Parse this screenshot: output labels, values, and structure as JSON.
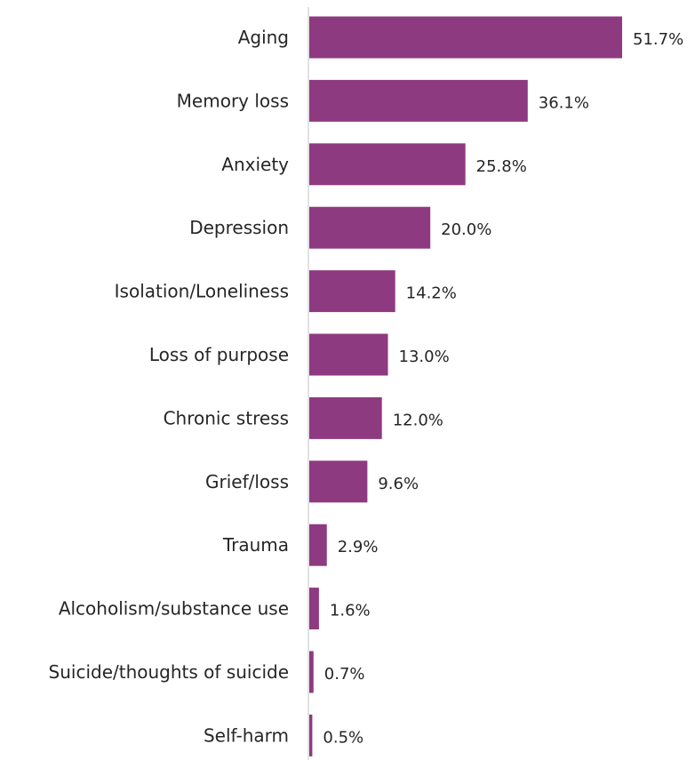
{
  "chart_data": {
    "type": "bar",
    "orientation": "horizontal",
    "title": "",
    "xlabel": "",
    "ylabel": "",
    "categories": [
      "Aging",
      "Memory loss",
      "Anxiety",
      "Depression",
      "Isolation/Loneliness",
      "Loss of purpose",
      "Chronic stress",
      "Grief/loss",
      "Trauma",
      "Alcoholism/substance use",
      "Suicide/thoughts of suicide",
      "Self-harm"
    ],
    "values": [
      51.7,
      36.1,
      25.8,
      20.0,
      14.2,
      13.0,
      12.0,
      9.6,
      2.9,
      1.6,
      0.7,
      0.5
    ],
    "value_labels": [
      "51.7%",
      "36.1%",
      "25.8%",
      "20.0%",
      "14.2%",
      "13.0%",
      "12.0%",
      "9.6%",
      "2.9%",
      "1.6%",
      "0.7%",
      "0.5%"
    ],
    "xlim": [
      0,
      51.7
    ],
    "grid": false,
    "legend": "none",
    "bar_color": "#8e3a80",
    "axis_color": "#d9d9d9"
  }
}
